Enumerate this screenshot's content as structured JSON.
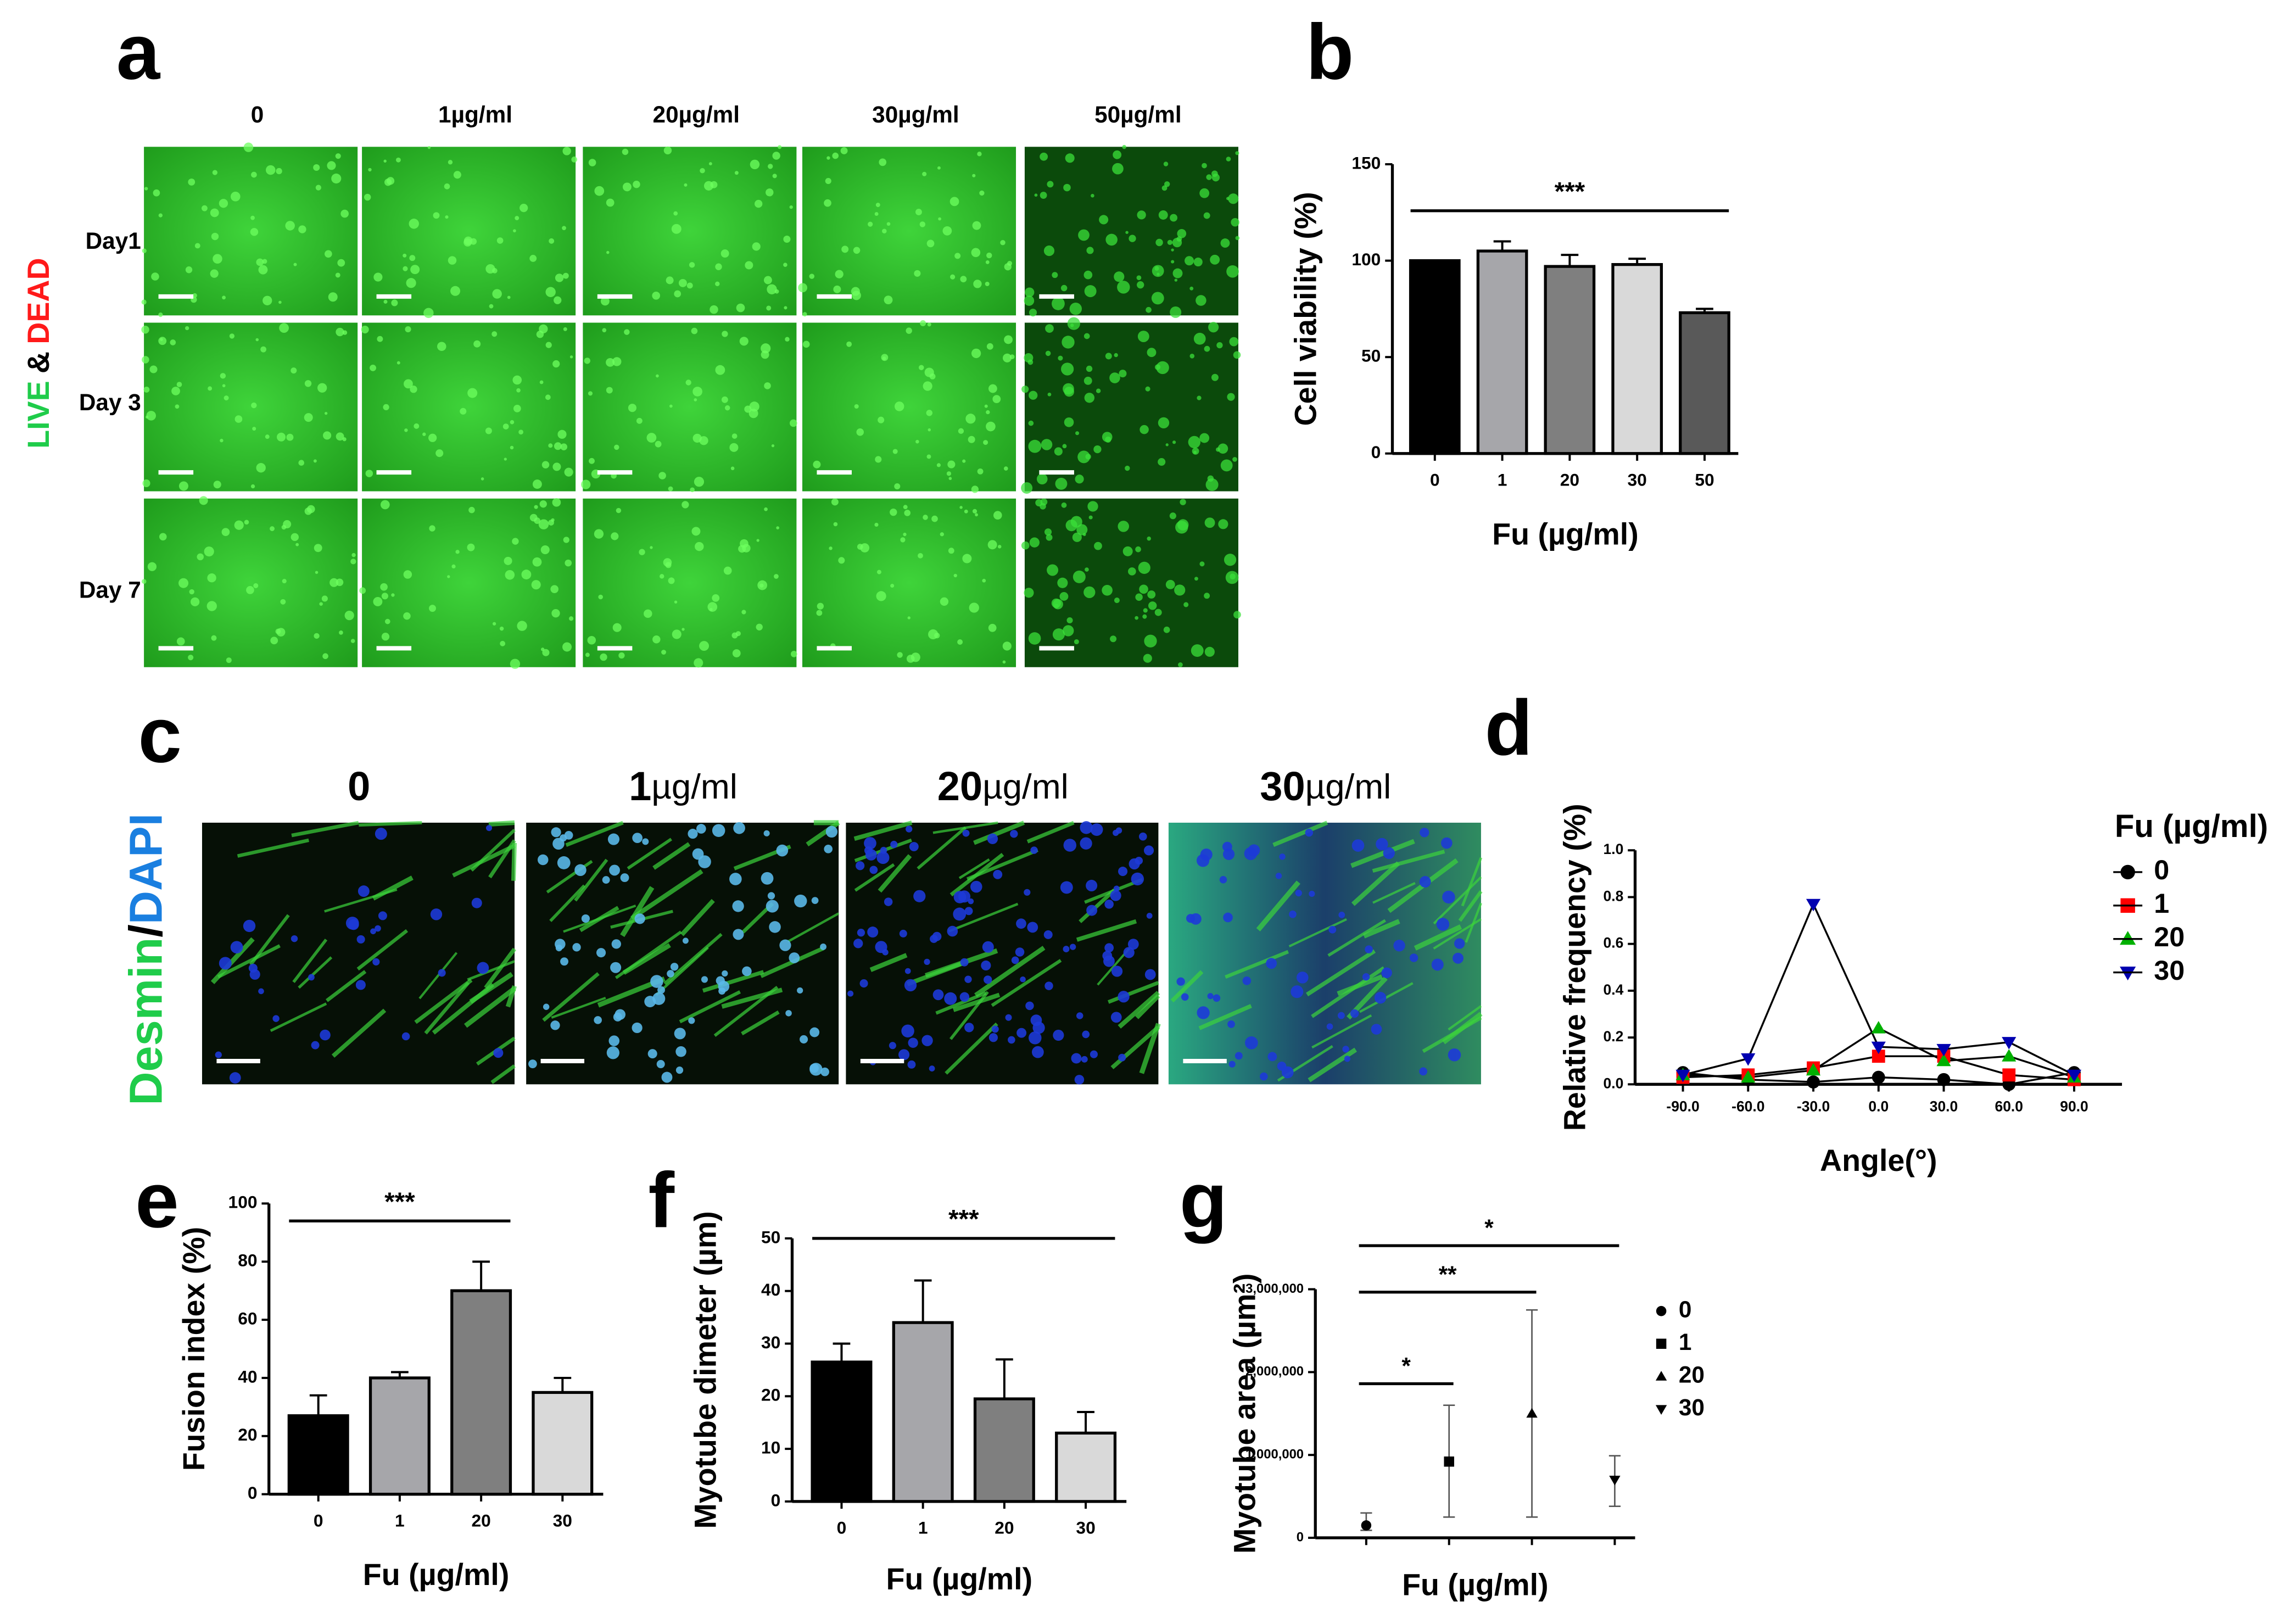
{
  "panel_a": {
    "letter": "a",
    "side_label": [
      "LIVE",
      "&",
      "DEAD"
    ],
    "columns": [
      "0",
      "1µg/ml",
      "20µg/ml",
      "30µg/ml",
      "50µg/ml"
    ],
    "rows": [
      "Day1",
      "Day 3",
      "Day 7"
    ]
  },
  "panel_c": {
    "letter": "c",
    "side_label": [
      "Desmin",
      "/",
      "DAPI"
    ],
    "columns": [
      {
        "number": "0"
      },
      {
        "number": "1",
        "unit": "µg/ml"
      },
      {
        "number": "20",
        "unit": "µg/ml"
      },
      {
        "number": "30",
        "unit": "µg/ml"
      }
    ]
  },
  "chart_data": [
    {
      "type": "bar",
      "panel_label": "b",
      "y_label": "Cell viability (%)",
      "x_label": "Fu (µg/ml)",
      "categories": [
        "0",
        "1",
        "20",
        "30",
        "50"
      ],
      "values": [
        100,
        105,
        97,
        98,
        73
      ],
      "errors": [
        0,
        5,
        6,
        3,
        2
      ],
      "colors": [
        "#000000",
        "#a6a6aa",
        "#7f7f7f",
        "#d9d9d9",
        "#595959"
      ],
      "ylim": [
        0,
        150
      ],
      "yticks": [
        0,
        50,
        100,
        150
      ],
      "annotations": [
        {
          "text": "***",
          "from": "0",
          "to": "50"
        }
      ]
    },
    {
      "type": "line",
      "panel_label": "d",
      "y_label": "Relative frequency (%)",
      "x_label": "Angle(°)",
      "legend_title": "Fu (µg/ml)",
      "x": [
        -90,
        -60,
        -30,
        0,
        30,
        60,
        90
      ],
      "xlim": [
        -112,
        112
      ],
      "xticks": [
        {
          "value": -90,
          "label": "-90.0"
        },
        {
          "value": -60,
          "label": "-60.0"
        },
        {
          "value": -30,
          "label": "-30.0"
        },
        {
          "value": 0,
          "label": "0.0"
        },
        {
          "value": 30,
          "label": "30.0"
        },
        {
          "value": 60,
          "label": "60.0"
        },
        {
          "value": 90,
          "label": "90.0"
        }
      ],
      "ylim": [
        0,
        1
      ],
      "yticks": [
        {
          "value": 0,
          "label": "0.0"
        },
        0.2,
        0.4,
        0.6,
        0.8,
        {
          "value": 1,
          "label": "1.0"
        }
      ],
      "series": [
        {
          "name": "0",
          "color": "#000000",
          "marker": "circle",
          "values": [
            0.05,
            0.02,
            0.01,
            0.03,
            0.02,
            0.0,
            0.05
          ]
        },
        {
          "name": "1",
          "color": "#ff0000",
          "marker": "square",
          "values": [
            0.03,
            0.04,
            0.07,
            0.12,
            0.12,
            0.04,
            0.02
          ]
        },
        {
          "name": "20",
          "color": "#00b000",
          "marker": "triangle-up",
          "values": [
            0.04,
            0.03,
            0.06,
            0.24,
            0.1,
            0.12,
            0.03
          ]
        },
        {
          "name": "30",
          "color": "#0000b0",
          "marker": "triangle-down",
          "values": [
            0.04,
            0.11,
            0.77,
            0.16,
            0.15,
            0.18,
            0.04
          ]
        }
      ]
    },
    {
      "type": "bar",
      "panel_label": "e",
      "y_label": "Fusion index (%)",
      "x_label": "Fu (µg/ml)",
      "categories": [
        "0",
        "1",
        "20",
        "30"
      ],
      "values": [
        27,
        40,
        70,
        35
      ],
      "errors": [
        7,
        2,
        10,
        5
      ],
      "colors": [
        "#000000",
        "#a6a6aa",
        "#7f7f7f",
        "#d9d9d9"
      ],
      "ylim": [
        0,
        100
      ],
      "yticks": [
        0,
        20,
        40,
        60,
        80,
        100
      ],
      "annotations": [
        {
          "text": "***",
          "from": "0",
          "to": "20"
        }
      ]
    },
    {
      "type": "bar",
      "panel_label": "f",
      "y_label": "Myotube dimeter (µm)",
      "x_label": "Fu (µg/ml)",
      "categories": [
        "0",
        "1",
        "20",
        "30"
      ],
      "values": [
        26.5,
        34,
        19.5,
        13
      ],
      "errors": [
        3.5,
        8,
        7.5,
        4
      ],
      "colors": [
        "#000000",
        "#a6a6aa",
        "#7f7f7f",
        "#d9d9d9"
      ],
      "ylim": [
        0,
        50
      ],
      "yticks": [
        0,
        10,
        20,
        30,
        40,
        50
      ],
      "annotations": [
        {
          "text": "***",
          "from": "0",
          "to": "30"
        }
      ]
    },
    {
      "type": "scatter",
      "panel_label": "g",
      "y_label": "Myotube area (µm²)",
      "x_label": "Fu (µg/ml)",
      "ylim": [
        0,
        3000000
      ],
      "yticks": [
        0,
        {
          "value": 1000000,
          "label": "1,000,000"
        },
        {
          "value": 2000000,
          "label": "2,000,000"
        },
        {
          "value": 3000000,
          "label": "3,000,000"
        }
      ],
      "series": [
        {
          "name": "0",
          "color": "#000000",
          "marker": "circle",
          "values": [
            150000
          ],
          "lower": [
            90000
          ],
          "upper": [
            300000
          ]
        },
        {
          "name": "1",
          "color": "#000000",
          "marker": "square",
          "values": [
            920000
          ],
          "lower": [
            250000
          ],
          "upper": [
            1600000
          ]
        },
        {
          "name": "20",
          "color": "#000000",
          "marker": "triangle-up",
          "values": [
            1500000
          ],
          "lower": [
            250000
          ],
          "upper": [
            2750000
          ]
        },
        {
          "name": "30",
          "color": "#000000",
          "marker": "triangle-down",
          "values": [
            700000
          ],
          "lower": [
            380000
          ],
          "upper": [
            990000
          ]
        }
      ],
      "annotations": [
        {
          "text": "*",
          "from": "0",
          "to": "1"
        },
        {
          "text": "**",
          "from": "0",
          "to": "20"
        },
        {
          "text": "*",
          "from": "0",
          "to": "30"
        }
      ]
    }
  ]
}
